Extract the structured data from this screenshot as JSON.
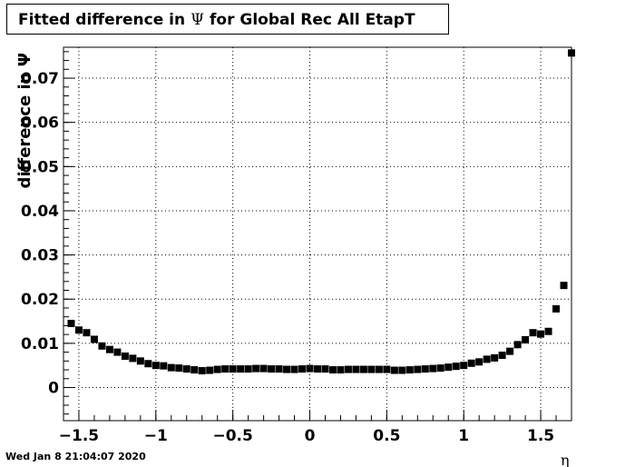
{
  "chart_data": {
    "type": "scatter",
    "title_prefix": "Fitted difference in",
    "title_symbol": "Ψ",
    "title_suffix": "for Global Rec All EtapT",
    "ylabel": "difference in Ψ",
    "xlabel": "η",
    "xlim": [
      -1.6,
      1.7
    ],
    "ylim": [
      -0.0075,
      0.077
    ],
    "x_ticks": [
      {
        "v": -1.5,
        "label": "−1.5"
      },
      {
        "v": -1,
        "label": "−1"
      },
      {
        "v": -0.5,
        "label": "−0.5"
      },
      {
        "v": 0,
        "label": "0"
      },
      {
        "v": 0.5,
        "label": "0.5"
      },
      {
        "v": 1,
        "label": "1"
      },
      {
        "v": 1.5,
        "label": "1.5"
      }
    ],
    "y_ticks": [
      {
        "v": 0,
        "label": "0"
      },
      {
        "v": 0.01,
        "label": "0.01"
      },
      {
        "v": 0.02,
        "label": "0.02"
      },
      {
        "v": 0.03,
        "label": "0.03"
      },
      {
        "v": 0.04,
        "label": "0.04"
      },
      {
        "v": 0.05,
        "label": "0.05"
      },
      {
        "v": 0.06,
        "label": "0.06"
      },
      {
        "v": 0.07,
        "label": "0.07"
      }
    ],
    "grid": true,
    "colors": {
      "black": "#000000",
      "red": "#ff0000"
    },
    "series": [
      {
        "marker": "square",
        "color": "#000000",
        "points": [
          {
            "x": -1.55,
            "y": 0.0145
          },
          {
            "x": -1.5,
            "y": 0.013
          },
          {
            "x": -1.45,
            "y": 0.0124
          },
          {
            "x": -1.4,
            "y": 0.0109
          },
          {
            "x": -1.35,
            "y": 0.0094
          },
          {
            "x": -1.3,
            "y": 0.0086
          },
          {
            "x": -1.25,
            "y": 0.008
          },
          {
            "x": -1.2,
            "y": 0.0071
          },
          {
            "x": -1.15,
            "y": 0.0066
          },
          {
            "x": -1.1,
            "y": 0.006
          },
          {
            "x": -1.05,
            "y": 0.0054
          },
          {
            "x": -1.0,
            "y": 0.005
          },
          {
            "x": -0.95,
            "y": 0.0049
          },
          {
            "x": -0.9,
            "y": 0.0045
          },
          {
            "x": -0.85,
            "y": 0.0044
          },
          {
            "x": -0.8,
            "y": 0.0042
          },
          {
            "x": -0.75,
            "y": 0.004
          },
          {
            "x": -0.7,
            "y": 0.0038
          },
          {
            "x": -0.65,
            "y": 0.0039
          },
          {
            "x": -0.6,
            "y": 0.0041
          },
          {
            "x": -0.55,
            "y": 0.0042
          },
          {
            "x": -0.5,
            "y": 0.0042
          },
          {
            "x": -0.45,
            "y": 0.0042
          },
          {
            "x": -0.4,
            "y": 0.0042
          },
          {
            "x": -0.35,
            "y": 0.0043
          },
          {
            "x": -0.3,
            "y": 0.0043
          },
          {
            "x": -0.25,
            "y": 0.0042
          },
          {
            "x": -0.2,
            "y": 0.0042
          },
          {
            "x": -0.15,
            "y": 0.0041
          },
          {
            "x": -0.1,
            "y": 0.0041
          },
          {
            "x": -0.05,
            "y": 0.0042
          },
          {
            "x": 0.0,
            "y": 0.0043
          },
          {
            "x": 0.05,
            "y": 0.0042
          },
          {
            "x": 0.1,
            "y": 0.0042
          },
          {
            "x": 0.15,
            "y": 0.004
          },
          {
            "x": 0.2,
            "y": 0.004
          },
          {
            "x": 0.25,
            "y": 0.0041
          },
          {
            "x": 0.3,
            "y": 0.0041
          },
          {
            "x": 0.35,
            "y": 0.0041
          },
          {
            "x": 0.4,
            "y": 0.0041
          },
          {
            "x": 0.45,
            "y": 0.0041
          },
          {
            "x": 0.5,
            "y": 0.0041
          },
          {
            "x": 0.55,
            "y": 0.0039
          },
          {
            "x": 0.6,
            "y": 0.0039
          },
          {
            "x": 0.65,
            "y": 0.004
          },
          {
            "x": 0.7,
            "y": 0.0041
          },
          {
            "x": 0.75,
            "y": 0.0042
          },
          {
            "x": 0.8,
            "y": 0.0043
          },
          {
            "x": 0.85,
            "y": 0.0044
          },
          {
            "x": 0.9,
            "y": 0.0046
          },
          {
            "x": 0.95,
            "y": 0.0048
          },
          {
            "x": 1.0,
            "y": 0.005
          },
          {
            "x": 1.05,
            "y": 0.0055
          },
          {
            "x": 1.1,
            "y": 0.0058
          },
          {
            "x": 1.15,
            "y": 0.0064
          },
          {
            "x": 1.2,
            "y": 0.0067
          },
          {
            "x": 1.25,
            "y": 0.0073
          },
          {
            "x": 1.3,
            "y": 0.0082
          },
          {
            "x": 1.35,
            "y": 0.0097
          },
          {
            "x": 1.4,
            "y": 0.0108
          },
          {
            "x": 1.45,
            "y": 0.0124
          },
          {
            "x": 1.5,
            "y": 0.0121
          },
          {
            "x": 1.55,
            "y": 0.0127
          },
          {
            "x": 1.6,
            "y": 0.0178
          },
          {
            "x": 1.65,
            "y": 0.0231
          },
          {
            "x": 1.7,
            "y": 0.0757
          }
        ]
      }
    ]
  },
  "timestamp": "Wed Jan  8 21:04:07 2020"
}
